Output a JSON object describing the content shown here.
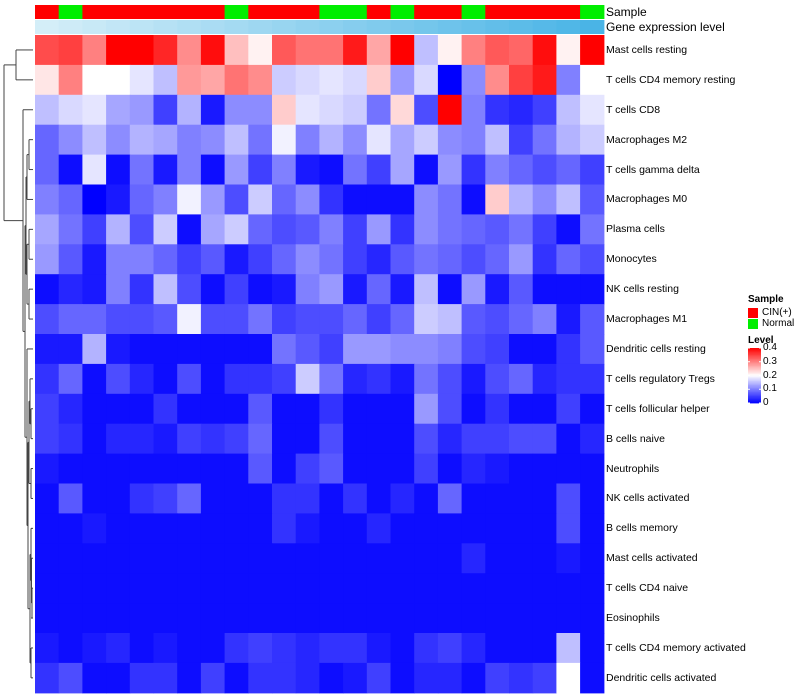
{
  "chart_data": {
    "type": "heatmap",
    "title": "",
    "annotation_titles": [
      "Sample",
      "Gene expression level"
    ],
    "sample_groups": [
      "CIN(+)",
      "Normal",
      "CIN(+)",
      "CIN(+)",
      "CIN(+)",
      "CIN(+)",
      "CIN(+)",
      "CIN(+)",
      "Normal",
      "CIN(+)",
      "CIN(+)",
      "CIN(+)",
      "Normal",
      "Normal",
      "CIN(+)",
      "Normal",
      "CIN(+)",
      "CIN(+)",
      "Normal",
      "CIN(+)",
      "CIN(+)",
      "CIN(+)",
      "CIN(+)",
      "Normal"
    ],
    "expression_level": [
      0.02,
      0.04,
      0.06,
      0.08,
      0.1,
      0.12,
      0.14,
      0.16,
      0.18,
      0.2,
      0.22,
      0.24,
      0.26,
      0.28,
      0.3,
      0.32,
      0.34,
      0.36,
      0.38,
      0.4,
      0.42,
      0.44,
      0.46,
      0.48
    ],
    "rows": [
      "Mast cells resting",
      "T cells CD4 memory resting",
      "T cells CD8",
      "Macrophages M2",
      "T cells gamma delta",
      "Macrophages M0",
      "Plasma cells",
      "Monocytes",
      "NK cells resting",
      "Macrophages M1",
      "Dendritic cells resting",
      "T cells regulatory  Tregs",
      "T cells follicular helper",
      "B cells naive",
      "Neutrophils",
      "NK cells activated",
      "B cells memory",
      "Mast cells activated",
      "T cells CD4 naive",
      "Eosinophils",
      "T cells CD4 memory activated",
      "Dendritic cells activated"
    ],
    "values": [
      [
        0.34,
        0.35,
        0.3,
        0.4,
        0.4,
        0.37,
        0.29,
        0.39,
        0.25,
        0.21,
        0.33,
        0.31,
        0.31,
        0.38,
        0.27,
        0.4,
        0.15,
        0.21,
        0.3,
        0.33,
        0.32,
        0.39,
        0.21,
        0.4
      ],
      [
        0.22,
        0.3,
        0.2,
        0.2,
        0.18,
        0.15,
        0.28,
        0.27,
        0.31,
        0.29,
        0.16,
        0.17,
        0.18,
        0.17,
        0.24,
        0.12,
        0.17,
        0.0,
        0.11,
        0.29,
        0.35,
        0.38,
        0.1,
        0.2
      ],
      [
        0.15,
        0.17,
        0.18,
        0.13,
        0.12,
        0.05,
        0.14,
        0.02,
        0.11,
        0.11,
        0.24,
        0.18,
        0.17,
        0.16,
        0.09,
        0.23,
        0.06,
        0.4,
        0.1,
        0.04,
        0.03,
        0.05,
        0.15,
        0.18
      ],
      [
        0.08,
        0.11,
        0.15,
        0.11,
        0.14,
        0.13,
        0.1,
        0.11,
        0.15,
        0.09,
        0.19,
        0.1,
        0.14,
        0.11,
        0.18,
        0.13,
        0.16,
        0.11,
        0.1,
        0.15,
        0.05,
        0.09,
        0.14,
        0.16
      ],
      [
        0.08,
        0.01,
        0.18,
        0.01,
        0.09,
        0.02,
        0.1,
        0.01,
        0.12,
        0.05,
        0.1,
        0.02,
        0.01,
        0.09,
        0.05,
        0.13,
        0.01,
        0.12,
        0.04,
        0.1,
        0.08,
        0.06,
        0.08,
        0.05
      ],
      [
        0.1,
        0.08,
        0.0,
        0.02,
        0.08,
        0.1,
        0.19,
        0.12,
        0.06,
        0.16,
        0.08,
        0.11,
        0.04,
        0.01,
        0.01,
        0.01,
        0.11,
        0.09,
        0.01,
        0.24,
        0.14,
        0.11,
        0.15,
        0.07
      ],
      [
        0.13,
        0.09,
        0.05,
        0.14,
        0.06,
        0.16,
        0.01,
        0.13,
        0.16,
        0.08,
        0.06,
        0.07,
        0.1,
        0.05,
        0.12,
        0.04,
        0.11,
        0.09,
        0.08,
        0.07,
        0.09,
        0.05,
        0.01,
        0.09
      ],
      [
        0.12,
        0.07,
        0.02,
        0.1,
        0.1,
        0.08,
        0.05,
        0.07,
        0.02,
        0.05,
        0.08,
        0.11,
        0.09,
        0.05,
        0.03,
        0.07,
        0.09,
        0.08,
        0.06,
        0.08,
        0.12,
        0.04,
        0.08,
        0.06
      ],
      [
        0.01,
        0.03,
        0.02,
        0.1,
        0.04,
        0.15,
        0.06,
        0.01,
        0.05,
        0.01,
        0.02,
        0.1,
        0.12,
        0.02,
        0.08,
        0.02,
        0.15,
        0.01,
        0.12,
        0.02,
        0.07,
        0.01,
        0.01,
        0.01
      ],
      [
        0.06,
        0.08,
        0.08,
        0.06,
        0.06,
        0.07,
        0.19,
        0.06,
        0.06,
        0.09,
        0.05,
        0.06,
        0.06,
        0.08,
        0.05,
        0.08,
        0.16,
        0.15,
        0.07,
        0.06,
        0.08,
        0.1,
        0.02,
        0.07
      ],
      [
        0.02,
        0.02,
        0.14,
        0.02,
        0.01,
        0.01,
        0.01,
        0.01,
        0.01,
        0.01,
        0.09,
        0.07,
        0.05,
        0.12,
        0.12,
        0.11,
        0.11,
        0.1,
        0.06,
        0.05,
        0.01,
        0.01,
        0.04,
        0.07
      ],
      [
        0.04,
        0.08,
        0.01,
        0.06,
        0.03,
        0.01,
        0.06,
        0.01,
        0.04,
        0.04,
        0.05,
        0.16,
        0.09,
        0.03,
        0.04,
        0.02,
        0.09,
        0.06,
        0.02,
        0.06,
        0.08,
        0.03,
        0.04,
        0.04
      ],
      [
        0.05,
        0.03,
        0.01,
        0.01,
        0.01,
        0.04,
        0.01,
        0.01,
        0.01,
        0.07,
        0.01,
        0.01,
        0.04,
        0.01,
        0.01,
        0.01,
        0.12,
        0.06,
        0.01,
        0.04,
        0.01,
        0.01,
        0.05,
        0.01
      ],
      [
        0.05,
        0.04,
        0.01,
        0.03,
        0.03,
        0.02,
        0.05,
        0.04,
        0.05,
        0.08,
        0.01,
        0.01,
        0.06,
        0.01,
        0.01,
        0.01,
        0.06,
        0.03,
        0.05,
        0.05,
        0.06,
        0.06,
        0.01,
        0.03
      ],
      [
        0.02,
        0.01,
        0.01,
        0.01,
        0.01,
        0.01,
        0.01,
        0.01,
        0.01,
        0.07,
        0.01,
        0.05,
        0.07,
        0.01,
        0.01,
        0.01,
        0.05,
        0.01,
        0.03,
        0.02,
        0.01,
        0.01,
        0.01,
        0.01
      ],
      [
        0.01,
        0.07,
        0.01,
        0.01,
        0.04,
        0.05,
        0.08,
        0.01,
        0.01,
        0.01,
        0.04,
        0.04,
        0.01,
        0.04,
        0.01,
        0.03,
        0.01,
        0.08,
        0.01,
        0.01,
        0.01,
        0.01,
        0.06,
        0.01
      ],
      [
        0.01,
        0.01,
        0.02,
        0.01,
        0.01,
        0.01,
        0.01,
        0.01,
        0.01,
        0.01,
        0.04,
        0.02,
        0.01,
        0.01,
        0.03,
        0.01,
        0.01,
        0.01,
        0.01,
        0.01,
        0.01,
        0.01,
        0.06,
        0.01
      ],
      [
        0.01,
        0.01,
        0.01,
        0.01,
        0.01,
        0.01,
        0.01,
        0.01,
        0.01,
        0.01,
        0.01,
        0.01,
        0.01,
        0.01,
        0.01,
        0.01,
        0.01,
        0.01,
        0.03,
        0.01,
        0.01,
        0.01,
        0.02,
        0.01
      ],
      [
        0.01,
        0.01,
        0.01,
        0.01,
        0.01,
        0.01,
        0.01,
        0.01,
        0.01,
        0.01,
        0.01,
        0.01,
        0.01,
        0.01,
        0.01,
        0.01,
        0.01,
        0.01,
        0.01,
        0.01,
        0.01,
        0.01,
        0.01,
        0.01
      ],
      [
        0.01,
        0.01,
        0.01,
        0.01,
        0.01,
        0.01,
        0.01,
        0.01,
        0.01,
        0.01,
        0.01,
        0.01,
        0.01,
        0.01,
        0.01,
        0.01,
        0.01,
        0.01,
        0.01,
        0.01,
        0.01,
        0.01,
        0.01,
        0.01
      ],
      [
        0.02,
        0.01,
        0.02,
        0.03,
        0.01,
        0.02,
        0.01,
        0.01,
        0.04,
        0.05,
        0.04,
        0.03,
        0.04,
        0.04,
        0.02,
        0.01,
        0.04,
        0.05,
        0.03,
        0.01,
        0.01,
        0.01,
        0.15,
        0.01
      ],
      [
        0.04,
        0.06,
        0.01,
        0.01,
        0.04,
        0.04,
        0.01,
        0.05,
        0.01,
        0.04,
        0.04,
        0.03,
        0.01,
        0.02,
        0.05,
        0.01,
        0.03,
        0.03,
        0.01,
        0.05,
        0.04,
        0.05,
        0.2,
        0.01
      ]
    ],
    "color_scale": {
      "low": "#0000ff",
      "mid": "#ffffff",
      "high": "#ff0000",
      "min": 0,
      "mid_value": 0.2,
      "max": 0.4
    },
    "legend": {
      "sample_title": "Sample",
      "sample_entries": [
        {
          "label": "CIN(+)",
          "color": "#ff0000"
        },
        {
          "label": "Normal",
          "color": "#00ee00"
        }
      ],
      "level_title": "Level",
      "level_ticks": [
        0.4,
        0.3,
        0.2,
        0.1,
        0
      ],
      "level_tick_labels": [
        "0.4",
        "0.3",
        "0.2",
        "0.1",
        "0"
      ]
    },
    "expression_color_low": "#d4eef8",
    "expression_color_high": "#4ab4e6",
    "dendrogram_color": "#444444"
  }
}
